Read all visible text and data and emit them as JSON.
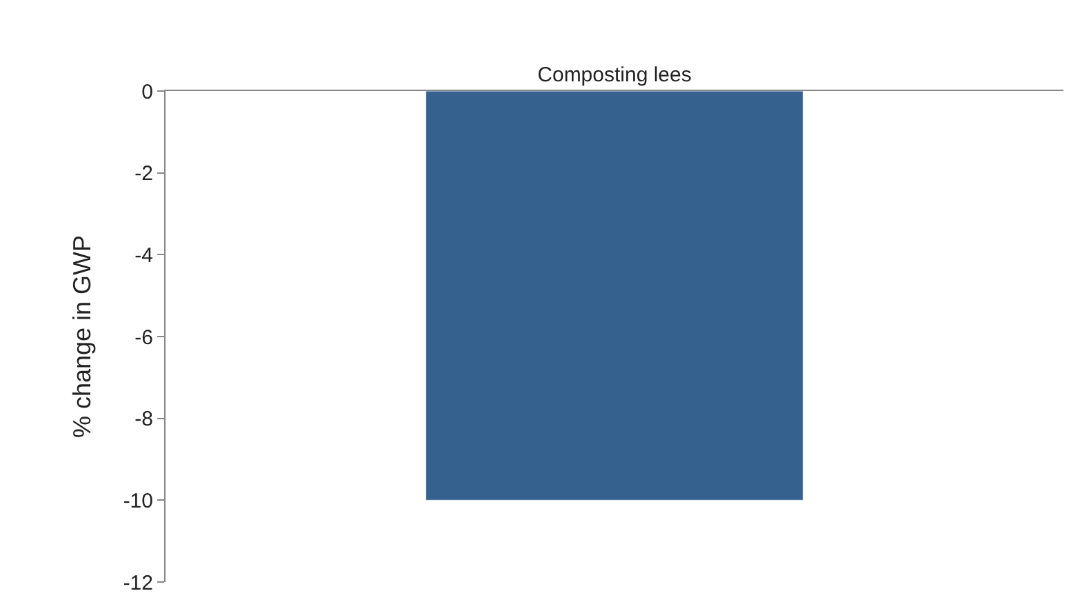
{
  "chart_data": {
    "type": "bar",
    "categories": [
      "Composting lees"
    ],
    "series": [
      {
        "color": "#35618f",
        "values": [
          -10
        ]
      }
    ],
    "ylabel": "% change in GWP",
    "ylim": [
      -12,
      0
    ],
    "yticks": [
      0,
      -2,
      -4,
      -6,
      -8,
      -10,
      -12
    ]
  }
}
